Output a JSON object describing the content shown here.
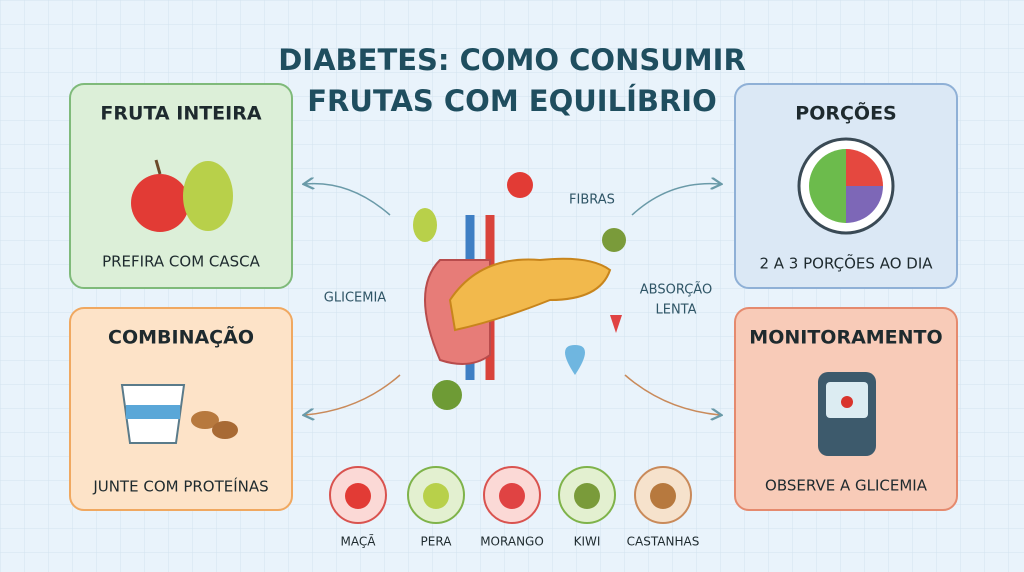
{
  "header": {
    "title_lines": [
      "DIABETES: COMO CONSUMIR",
      "FRUTAS COM EQUILÍBRIO"
    ]
  },
  "cards": [
    {
      "title": "FRUTA INTEIRA",
      "caption": "PREFIRA COM CASCA"
    },
    {
      "title": "PORÇÕES",
      "caption": "2 A 3 PORÇÕES AO DIA"
    },
    {
      "title": "COMBINAÇÃO",
      "caption": "JUNTE COM PROTEÍNAS"
    },
    {
      "title": "MONITORAMENTO",
      "caption": "OBSERVE A GLICEMIA"
    }
  ],
  "center_labels": {
    "fibras": "FIBRAS",
    "glicemia": "GLICEMIA",
    "absorcao_lines": [
      "ABSORÇÃO",
      "LENTA"
    ]
  },
  "fruits": [
    "MAÇÃ",
    "PERA",
    "MORANGO",
    "KIWI",
    "CASTANHAS"
  ]
}
